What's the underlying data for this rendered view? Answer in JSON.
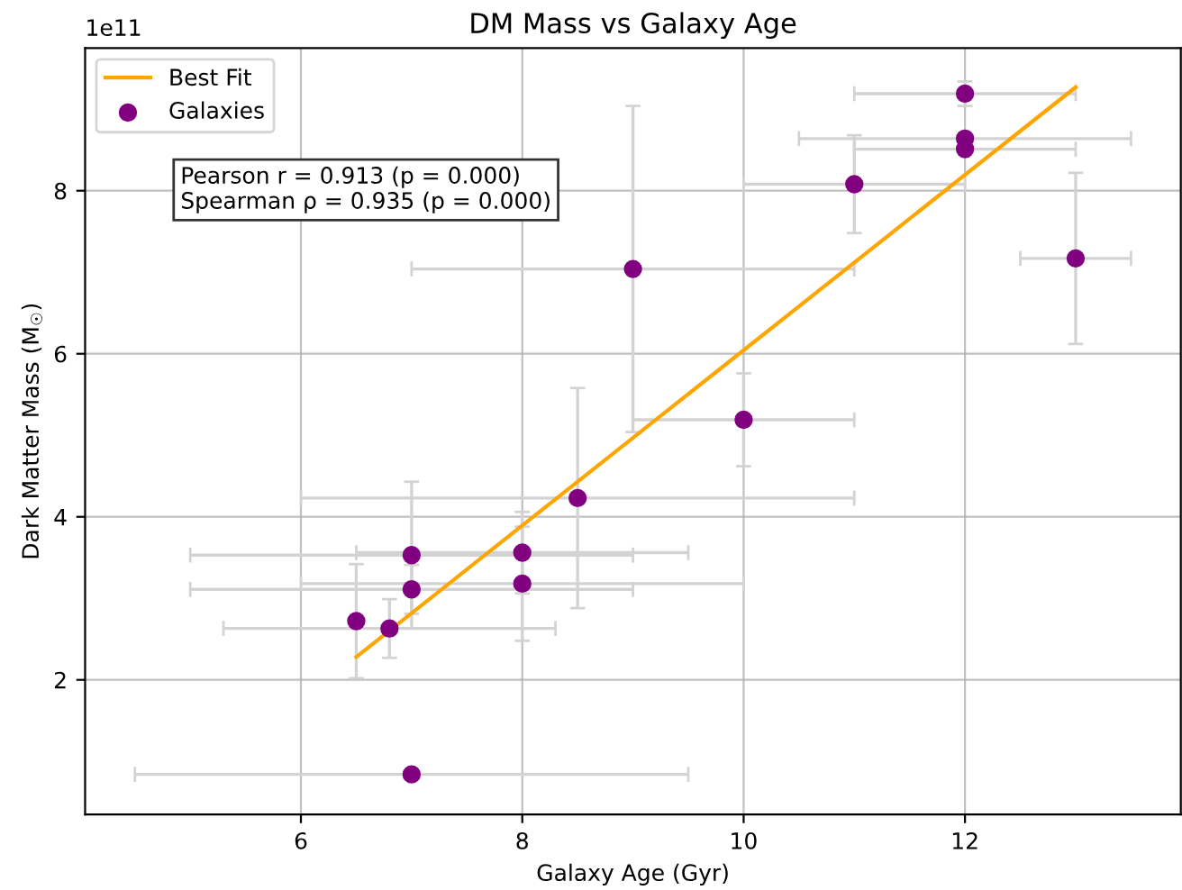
{
  "chart_data": {
    "type": "scatter",
    "title": "DM Mass vs Galaxy Age",
    "xlabel": "Galaxy Age (Gyr)",
    "ylabel": "Dark Matter Mass (M$_{☉}$)",
    "annotations": [
      "1e11",
      "Pearson r = 0.913 (p = 0.000)\nSpearman ρ = 0.935 (p = 0.000)"
    ],
    "series": [
      {
        "name": "Best Fit",
        "type": "line",
        "color": "#ffa500",
        "x": [
          6.5,
          13
        ],
        "values": [
          2.28,
          9.27
        ]
      },
      {
        "name": "Galaxies",
        "color": "#800080",
        "marker": "circle",
        "x": [
          7,
          6.5,
          6.8,
          7,
          7,
          8,
          8,
          8.5,
          9,
          10,
          11,
          12,
          12,
          12,
          13
        ],
        "values": [
          0.84,
          2.72,
          2.63,
          3.11,
          3.53,
          3.56,
          3.18,
          4.23,
          7.04,
          5.19,
          8.08,
          9.19,
          8.64,
          8.51,
          7.17
        ],
        "errors": [
          null,
          0.7,
          0.36,
          0.3,
          0.9,
          0.5,
          0.7,
          1.35,
          2,
          0.57,
          0.6,
          0.15,
          null,
          null,
          1.05
        ],
        "xerrors": [
          2.5,
          null,
          1.5,
          2,
          2,
          1.5,
          2,
          2.5,
          2,
          1,
          1,
          1,
          1.5,
          1,
          0.5
        ]
      }
    ],
    "xlim": [
      4.05,
      13.95
    ],
    "ylim": [
      0.35,
      9.75
    ],
    "xticks": [
      6,
      8,
      10,
      12
    ],
    "yticks": [
      2,
      4,
      6,
      8
    ],
    "grid": true,
    "legend": "top left"
  }
}
